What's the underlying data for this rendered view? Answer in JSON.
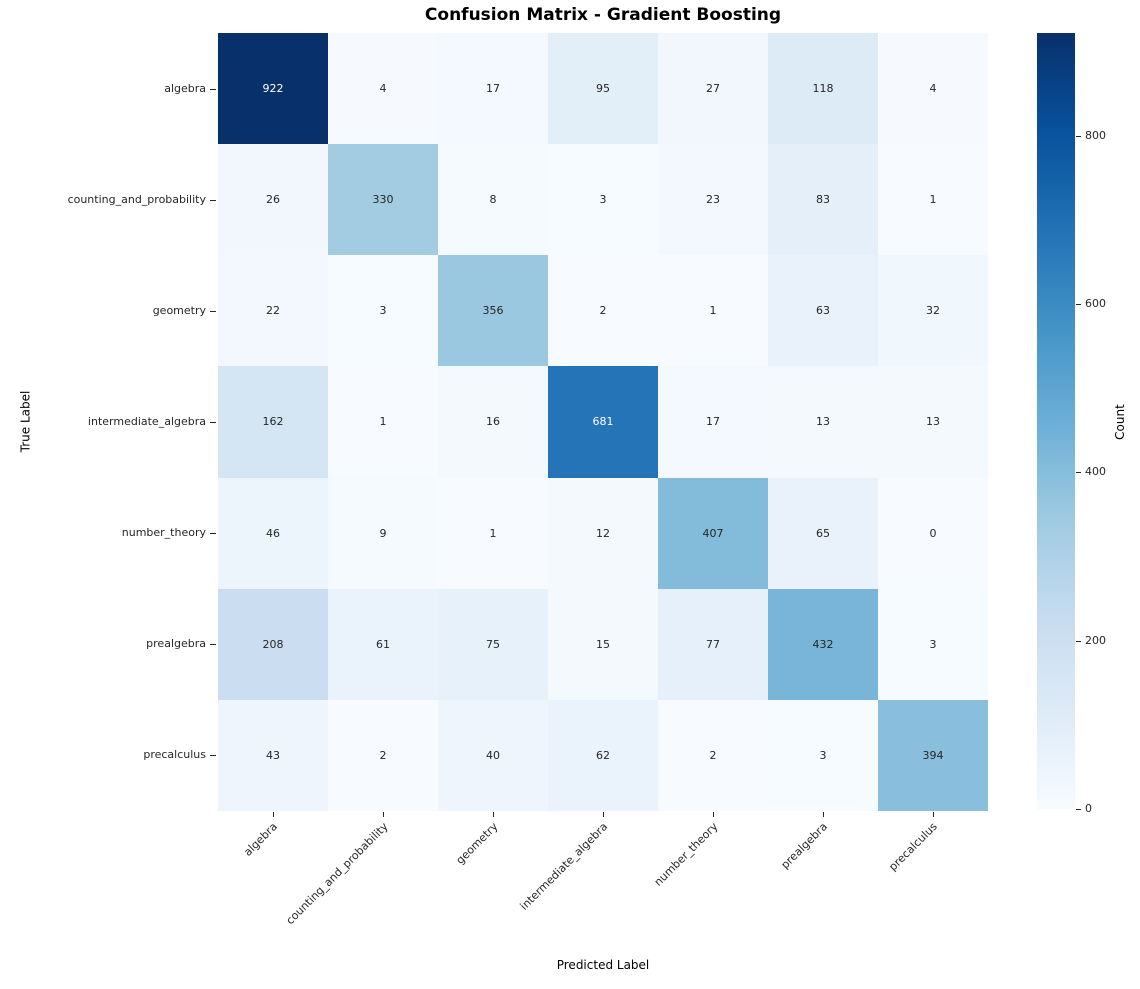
{
  "title": "Confusion Matrix - Gradient Boosting",
  "chart_data": {
    "type": "heatmap",
    "title": "Confusion Matrix - Gradient Boosting",
    "xlabel": "Predicted Label",
    "ylabel": "True Label",
    "categories": [
      "algebra",
      "counting_and_probability",
      "geometry",
      "intermediate_algebra",
      "number_theory",
      "prealgebra",
      "precalculus"
    ],
    "matrix": [
      [
        922,
        4,
        17,
        95,
        27,
        118,
        4
      ],
      [
        26,
        330,
        8,
        3,
        23,
        83,
        1
      ],
      [
        22,
        3,
        356,
        2,
        1,
        63,
        32
      ],
      [
        162,
        1,
        16,
        681,
        17,
        13,
        13
      ],
      [
        46,
        9,
        1,
        12,
        407,
        65,
        0
      ],
      [
        208,
        61,
        75,
        15,
        77,
        432,
        3
      ],
      [
        43,
        2,
        40,
        62,
        2,
        3,
        394
      ]
    ],
    "vmin": 0,
    "vmax": 922,
    "colormap": "Blues",
    "colorbar_label": "Count",
    "colorbar_ticks": [
      0,
      200,
      400,
      600,
      800
    ],
    "legend_position": "right colorbar",
    "grid": false,
    "x_tick_rotation": 45
  },
  "colors": {
    "background": "#ffffff",
    "colormap_anchors": [
      "#f7fbff",
      "#deebf7",
      "#c6dbef",
      "#9ecae1",
      "#6baed6",
      "#4292c6",
      "#2171b5",
      "#08519c",
      "#08306b"
    ],
    "annot_dark": "#262626",
    "annot_light": "#ffffff",
    "tick_color": "#262626"
  }
}
